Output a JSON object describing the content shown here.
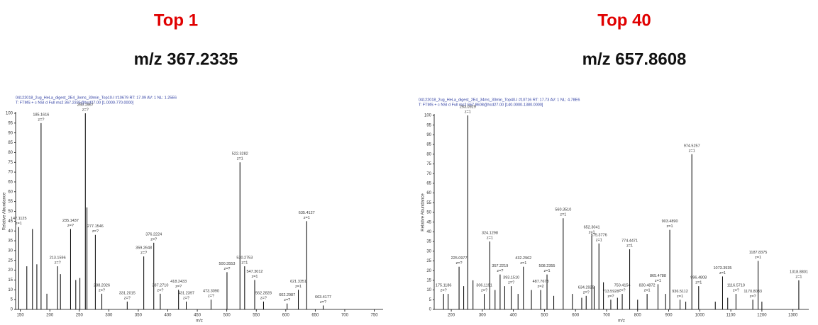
{
  "chart_data": [
    {
      "type": "stem",
      "title": "Top 1",
      "subtitle": "m/z 367.2335",
      "header": [
        "04122018_2ug_HeLa_digest_2E4_3xms_30min_Top10-I #10679  RT: 17.09  AV: 1  NL: 1.25E6",
        "T: FTMS + c NSI d Full ms2 367.2335@hcd27.00 [1.0000-770.0000]"
      ],
      "xlabel": "m/z",
      "ylabel": "Relative Abundance",
      "color": "#000000",
      "x": [
        147.1125,
        161,
        170.6,
        178,
        185.1616,
        195,
        213.1596,
        218,
        235.1437,
        244,
        251,
        260.1967,
        263,
        277.1546,
        288.2026,
        331.2015,
        359.2648,
        376.2224,
        387.271,
        418.2433,
        431.2397,
        473.309,
        500.3553,
        522.3282,
        530.2753,
        547.3012,
        562.2828,
        602.2987,
        621.3351,
        635.4127,
        663.4177
      ],
      "values": [
        42,
        22,
        41,
        23,
        95,
        8,
        22,
        18,
        41,
        15,
        16,
        100,
        52,
        38,
        8,
        4,
        27,
        34,
        8,
        10,
        4,
        5,
        19,
        75,
        22,
        15,
        4,
        3,
        10,
        45,
        2
      ],
      "peak_labels": [
        "147.1125",
        null,
        null,
        null,
        "185.1616",
        null,
        "213.1596",
        null,
        "235.1437",
        null,
        null,
        "260.1967",
        null,
        "277.1546",
        "288.2026",
        "331.2015",
        "359.2648",
        "376.2224",
        "387.2710",
        "418.2433",
        "431.2397",
        "473.3090",
        "500.3553",
        "522.3282",
        "530.2753",
        "547.3012",
        "562.2828",
        "602.2987",
        "621.3351",
        "635.4127",
        "663.4177"
      ],
      "charges": [
        "z=1",
        null,
        null,
        null,
        "z=?",
        null,
        "z=?",
        null,
        "z=?",
        null,
        null,
        "z=?",
        null,
        "z=?",
        "z=?",
        "z=?",
        "z=?",
        "z=?",
        "z=?",
        "z=?",
        "z=?",
        "z=?",
        "z=?",
        "z=1",
        "z=1",
        "z=1",
        "z=?",
        "z=?",
        "z=1",
        "z=1",
        "z=?"
      ],
      "xlim": [
        142,
        765
      ],
      "xticks": [
        150,
        200,
        250,
        300,
        350,
        400,
        450,
        500,
        550,
        600,
        650,
        700,
        750
      ],
      "ylim": [
        0,
        100
      ],
      "yticks": [
        0,
        5,
        10,
        15,
        20,
        25,
        30,
        35,
        40,
        45,
        50,
        55,
        60,
        65,
        70,
        75,
        80,
        85,
        90,
        95,
        100
      ]
    },
    {
      "type": "stem",
      "title": "Top 40",
      "subtitle": "m/z 657.8608",
      "header": [
        "04122018_2ug_HeLa_digest_2E4_34ms_30min_Top40-I #10716  RT: 17.73  AV: 1  NL: 4.78E6",
        "T: FTMS + c NSI d Full ms2 657.8608@hcd27.00 [140.0000-1380.0000]"
      ],
      "xlabel": "m/z",
      "ylabel": "Relative Abundance",
      "color": "#000000",
      "x": [
        175.1186,
        190,
        225.0977,
        240,
        253.0929,
        270,
        306.1191,
        324.1298,
        341,
        357.2219,
        372,
        393.151,
        415,
        432.2962,
        458,
        487.7673,
        508.2355,
        530,
        560.351,
        590,
        620,
        634.2925,
        652.3041,
        660,
        675.3776,
        690,
        713.5928,
        735,
        750.4154,
        774.4471,
        800,
        830.4872,
        865.4788,
        890,
        903.489,
        936.5112,
        955,
        974.5257,
        996.4808,
        1050,
        1073.3935,
        1090,
        1116.571,
        1170.8083,
        1187.8375,
        1200,
        1318.8801
      ],
      "values": [
        8,
        8,
        22,
        12,
        100,
        15,
        8,
        35,
        10,
        18,
        12,
        12,
        8,
        22,
        10,
        10,
        18,
        7,
        47,
        8,
        6,
        7,
        38,
        12,
        34,
        14,
        5,
        6,
        8,
        31,
        5,
        8,
        13,
        8,
        41,
        5,
        4,
        80,
        12,
        4,
        17,
        6,
        8,
        5,
        25,
        4,
        15
      ],
      "peak_labels": [
        "175.1186",
        null,
        "225.0977",
        null,
        "253.0929",
        null,
        "306.1191",
        "324.1298",
        null,
        "357.2219",
        null,
        "393.1510",
        null,
        "432.2962",
        null,
        "487.7673",
        "508.2355",
        null,
        "560.3510",
        null,
        null,
        "634.2925",
        "652.3041",
        null,
        "675.3776",
        null,
        "713.5928",
        null,
        "750.4154",
        "774.4471",
        null,
        "830.4872",
        "865.4788",
        null,
        "903.4890",
        "936.5112",
        null,
        "974.5257",
        "996.4808",
        null,
        "1073.3935",
        null,
        "1116.5710",
        "1170.8083",
        "1187.8375",
        null,
        "1318.8801"
      ],
      "charges": [
        "z=?",
        null,
        "z=?",
        null,
        "z=1",
        null,
        "z=?",
        "z=1",
        null,
        "z=?",
        null,
        "z=?",
        null,
        "z=1",
        null,
        "z=2",
        "z=1",
        null,
        "z=1",
        null,
        null,
        "z=?",
        "z=1",
        null,
        "z=1",
        null,
        "z=?",
        null,
        "z=?",
        "z=1",
        null,
        "z=1",
        "z=1",
        null,
        "z=1",
        "z=1",
        null,
        "z=1",
        "z=1",
        null,
        "z=1",
        null,
        "z=?",
        "z=?",
        "z=1",
        null,
        "z=1"
      ],
      "xlim": [
        145,
        1351
      ],
      "xticks": [
        200,
        300,
        400,
        500,
        600,
        700,
        800,
        900,
        1000,
        1100,
        1200,
        1300
      ],
      "ylim": [
        0,
        100
      ],
      "yticks": [
        0,
        5,
        10,
        15,
        20,
        25,
        30,
        35,
        40,
        45,
        50,
        55,
        60,
        65,
        70,
        75,
        80,
        85,
        90,
        95,
        100
      ]
    }
  ]
}
